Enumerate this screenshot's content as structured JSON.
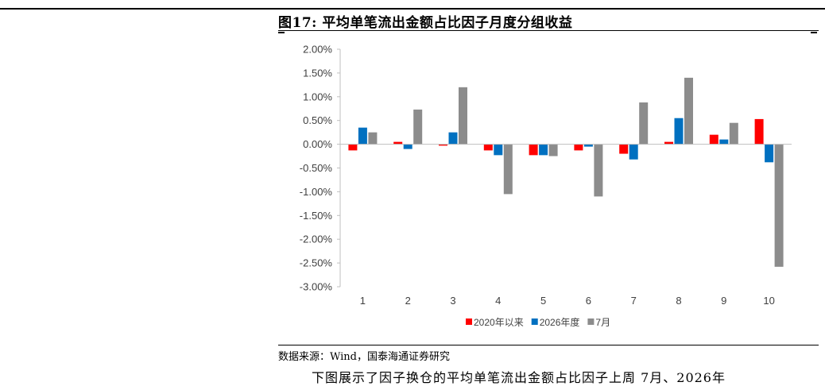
{
  "figure": {
    "title": "图17: 平均单笔流出金额占比因子月度分组收益",
    "source": "数据来源：Wind，国泰海通证券研究",
    "cutoff_text": "下图展示了因子换仓的平均单笔流出金额占比因子上周 7月、2026年"
  },
  "chart_data": {
    "type": "bar",
    "categories": [
      "1",
      "2",
      "3",
      "4",
      "5",
      "6",
      "7",
      "8",
      "9",
      "10"
    ],
    "series": [
      {
        "name": "2020年以来",
        "color": "#ff0000",
        "values": [
          -0.0013,
          0.0005,
          -0.0003,
          -0.0013,
          -0.0023,
          -0.0013,
          -0.002,
          0.0005,
          0.002,
          0.0053
        ]
      },
      {
        "name": "2026年度",
        "color": "#0070c0",
        "values": [
          0.0035,
          -0.001,
          0.0025,
          -0.0023,
          -0.0023,
          -0.0005,
          -0.0032,
          0.0055,
          0.001,
          -0.0038
        ]
      },
      {
        "name": "7月",
        "color": "#8c8c8c",
        "values": [
          0.0025,
          0.0073,
          0.012,
          -0.0105,
          -0.0025,
          -0.011,
          0.0088,
          0.014,
          0.0045,
          -0.0258
        ]
      }
    ],
    "yticks": [
      "2.00%",
      "1.50%",
      "1.00%",
      "0.50%",
      "0.00%",
      "-0.50%",
      "-1.00%",
      "-1.50%",
      "-2.00%",
      "-2.50%",
      "-3.00%"
    ],
    "ylim": [
      -0.03,
      0.02
    ],
    "legend_position": "bottom",
    "grid": false,
    "xlabel": "",
    "ylabel": ""
  }
}
